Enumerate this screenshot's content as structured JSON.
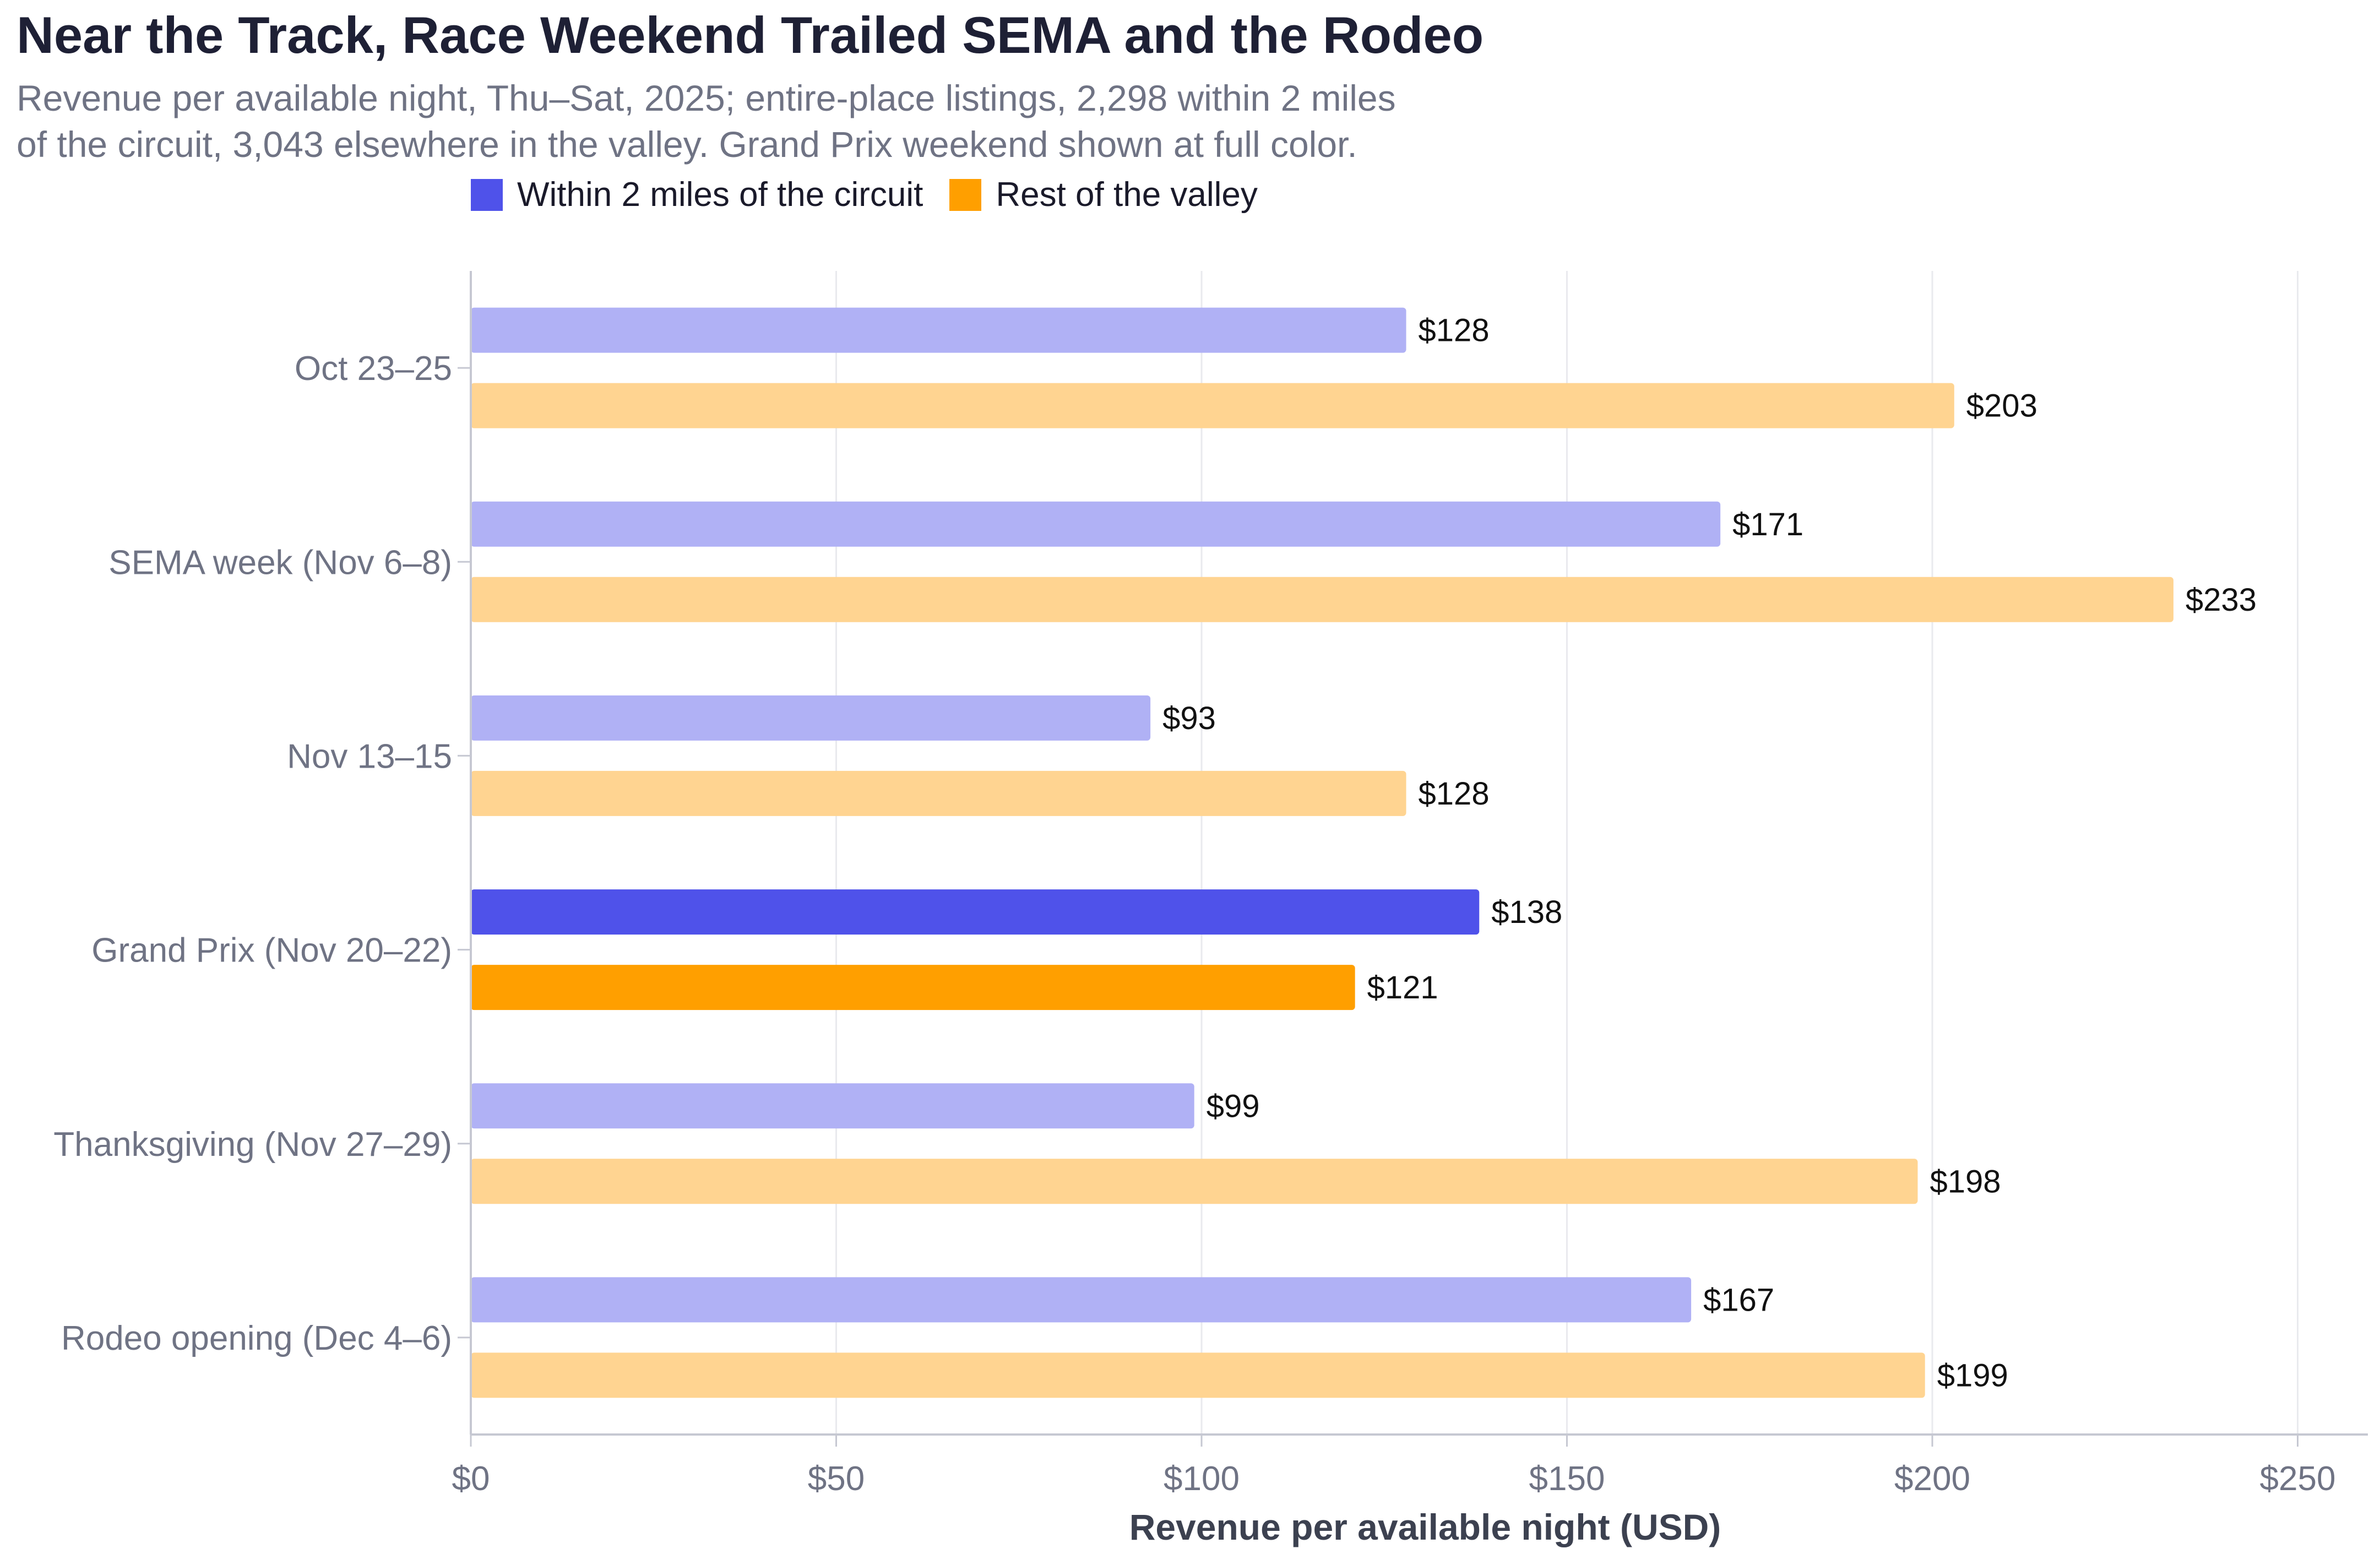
{
  "chart_data": {
    "type": "bar",
    "orientation": "horizontal",
    "title": "Near the Track, Race Weekend Trailed SEMA and the Rodeo",
    "subtitle_lines": [
      "Revenue per available night, Thu–Sat, 2025; entire-place listings, 2,298 within 2 miles",
      "of the circuit, 3,043 elsewhere in the valley. Grand Prix weekend shown at full color."
    ],
    "categories": [
      "Oct 23–25",
      "SEMA week (Nov 6–8)",
      "Nov 13–15",
      "Grand Prix (Nov 20–22)",
      "Thanksgiving (Nov 27–29)",
      "Rodeo opening (Dec 4–6)"
    ],
    "series": [
      {
        "name": "Within 2 miles of the circuit",
        "color": "#4f52ea",
        "faded_color": "#b0b1f5",
        "values": [
          128,
          171,
          93,
          138,
          99,
          167
        ]
      },
      {
        "name": "Rest of the valley",
        "color": "#ff9f00",
        "faded_color": "#ffd491",
        "values": [
          203,
          233,
          128,
          121,
          198,
          199
        ]
      }
    ],
    "highlight_category": "Grand Prix (Nov 20–22)",
    "value_labels": [
      [
        "$128",
        "$171",
        "$93",
        "$138",
        "$99",
        "$167"
      ],
      [
        "$203",
        "$233",
        "$128",
        "$121",
        "$198",
        "$199"
      ]
    ],
    "xlabel": "Revenue per available night (USD)",
    "ylabel": "",
    "xlim": [
      0,
      260
    ],
    "xticks": [
      0,
      50,
      100,
      150,
      200,
      250
    ],
    "xtick_labels": [
      "$0",
      "$50",
      "$100",
      "$150",
      "$200",
      "$250"
    ],
    "grid": true,
    "legend_position": "top"
  }
}
